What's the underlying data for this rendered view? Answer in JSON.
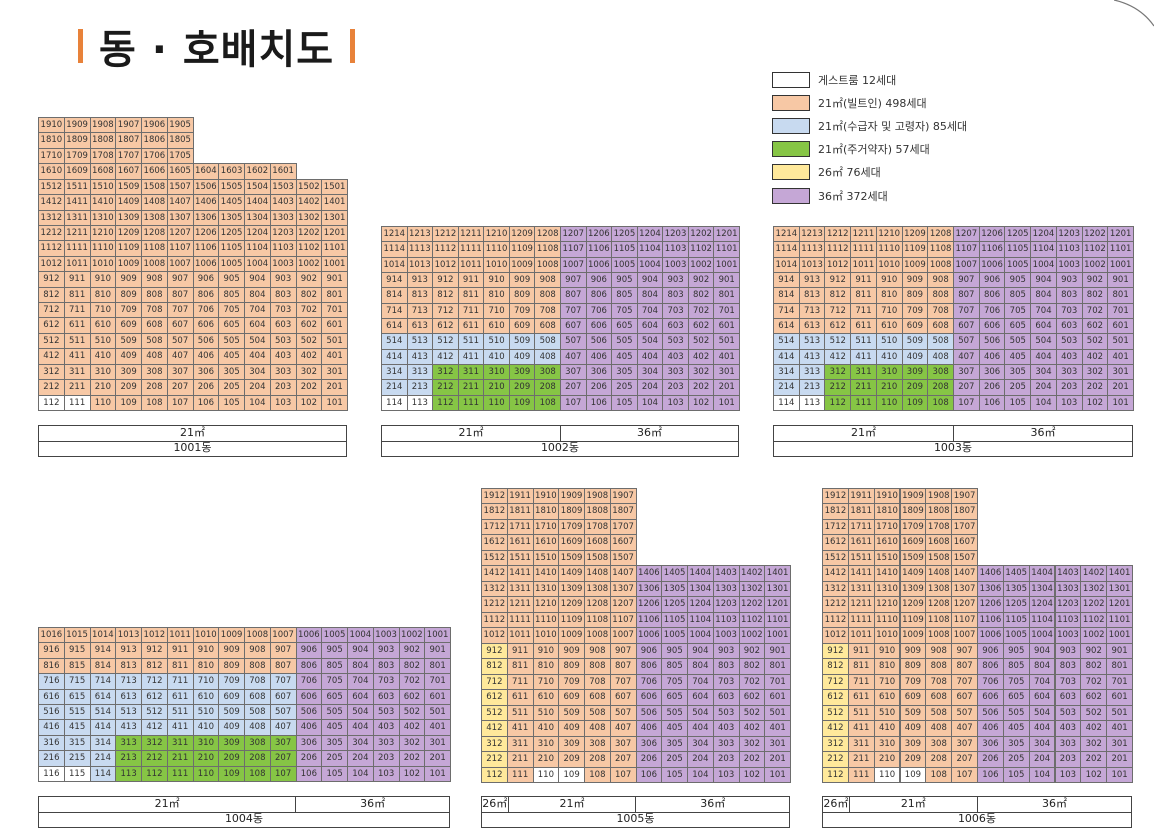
{
  "title": "동 · 호배치도",
  "legend": [
    {
      "label": "게스트룸 12세대",
      "color": "#ffffff"
    },
    {
      "label": "21㎡(빌트인) 498세대",
      "color": "#f7c8a5"
    },
    {
      "label": "21㎡(수급자 및 고령자) 85세대",
      "color": "#c8daf0"
    },
    {
      "label": "21㎡(주거약자) 57세대",
      "color": "#86c545"
    },
    {
      "label": "26㎡ 76세대",
      "color": "#ffe99b"
    },
    {
      "label": "36㎡ 372세대",
      "color": "#c5a7d6"
    }
  ],
  "type_key": {
    "G": "게스트룸",
    "B": "21㎡(빌트인)",
    "S": "21㎡(수급자 및 고령자)",
    "D": "21㎡(주거약자)",
    "T": "26㎡",
    "P": "36㎡"
  },
  "buildings": [
    {
      "name": "1001동",
      "floors": [
        {
          "floor": 19,
          "first_unit": 10,
          "last_unit": 5,
          "types": "BBBBBB"
        },
        {
          "floor": 18,
          "first_unit": 10,
          "last_unit": 5,
          "types": "BBBBBB"
        },
        {
          "floor": 17,
          "first_unit": 10,
          "last_unit": 5,
          "types": "BBBBBB"
        },
        {
          "floor": 16,
          "first_unit": 10,
          "last_unit": 1,
          "types": "BBBBBBBBBB"
        },
        {
          "floor": 15,
          "first_unit": 12,
          "last_unit": 1,
          "types": "BBBBBBBBBBBB"
        },
        {
          "floor": 14,
          "first_unit": 12,
          "last_unit": 1,
          "types": "BBBBBBBBBBBB"
        },
        {
          "floor": 13,
          "first_unit": 12,
          "last_unit": 1,
          "types": "BBBBBBBBBBBB"
        },
        {
          "floor": 12,
          "first_unit": 12,
          "last_unit": 1,
          "types": "BBBBBBBBBBBB"
        },
        {
          "floor": 11,
          "first_unit": 12,
          "last_unit": 1,
          "types": "BBBBBBBBBBBB"
        },
        {
          "floor": 10,
          "first_unit": 12,
          "last_unit": 1,
          "types": "BBBBBBBBBBBB"
        },
        {
          "floor": 9,
          "first_unit": 12,
          "last_unit": 1,
          "types": "BBBBBBBBBBBB"
        },
        {
          "floor": 8,
          "first_unit": 12,
          "last_unit": 1,
          "types": "BBBBBBBBBBBB"
        },
        {
          "floor": 7,
          "first_unit": 12,
          "last_unit": 1,
          "types": "BBBBBBBBBBBB"
        },
        {
          "floor": 6,
          "first_unit": 12,
          "last_unit": 1,
          "types": "BBBBBBBBBBBB"
        },
        {
          "floor": 5,
          "first_unit": 12,
          "last_unit": 1,
          "types": "BBBBBBBBBBBB"
        },
        {
          "floor": 4,
          "first_unit": 12,
          "last_unit": 1,
          "types": "BBBBBBBBBBBB"
        },
        {
          "floor": 3,
          "first_unit": 12,
          "last_unit": 1,
          "types": "BBBBBBBBBBBB"
        },
        {
          "floor": 2,
          "first_unit": 12,
          "last_unit": 1,
          "types": "BBBBBBBBBBBB"
        },
        {
          "floor": 1,
          "first_unit": 12,
          "last_unit": 1,
          "types": "GGBBBBBBBBBB"
        }
      ],
      "footer": {
        "types": [
          {
            "label": "21㎡",
            "units": 12
          }
        ]
      }
    },
    {
      "name": "1002동",
      "floors": [
        {
          "floor": 12,
          "first_unit": 14,
          "last_unit": 1,
          "types": "BBBBBBBPPPPPPP"
        },
        {
          "floor": 11,
          "first_unit": 14,
          "last_unit": 1,
          "types": "BBBBBBBPPPPPPP"
        },
        {
          "floor": 10,
          "first_unit": 14,
          "last_unit": 1,
          "types": "BBBBBBBPPPPPPP"
        },
        {
          "floor": 9,
          "first_unit": 14,
          "last_unit": 1,
          "types": "BBBBBBBPPPPPPP"
        },
        {
          "floor": 8,
          "first_unit": 14,
          "last_unit": 1,
          "types": "BBBBBBBPPPPPPP"
        },
        {
          "floor": 7,
          "first_unit": 14,
          "last_unit": 1,
          "types": "BBBBBBBPPPPPPP"
        },
        {
          "floor": 6,
          "first_unit": 14,
          "last_unit": 1,
          "types": "BBBBBBBPPPPPPP"
        },
        {
          "floor": 5,
          "first_unit": 14,
          "last_unit": 1,
          "types": "SSSSSSSPPPPPPP"
        },
        {
          "floor": 4,
          "first_unit": 14,
          "last_unit": 1,
          "types": "SSSSSSSPPPPPPP"
        },
        {
          "floor": 3,
          "first_unit": 14,
          "last_unit": 1,
          "types": "SSDDDDDPPPPPPP"
        },
        {
          "floor": 2,
          "first_unit": 14,
          "last_unit": 1,
          "types": "SSDDDDDPPPPPPP"
        },
        {
          "floor": 1,
          "first_unit": 14,
          "last_unit": 1,
          "types": "GGDDDDDPPPPPPP"
        }
      ],
      "footer": {
        "types": [
          {
            "label": "21㎡",
            "units": 7
          },
          {
            "label": "36㎡",
            "units": 7
          }
        ]
      }
    },
    {
      "name": "1003동",
      "floors": [
        {
          "floor": 12,
          "first_unit": 14,
          "last_unit": 1,
          "types": "BBBBBBBPPPPPPP"
        },
        {
          "floor": 11,
          "first_unit": 14,
          "last_unit": 1,
          "types": "BBBBBBBPPPPPPP"
        },
        {
          "floor": 10,
          "first_unit": 14,
          "last_unit": 1,
          "types": "BBBBBBBPPPPPPP"
        },
        {
          "floor": 9,
          "first_unit": 14,
          "last_unit": 1,
          "types": "BBBBBBBPPPPPPP"
        },
        {
          "floor": 8,
          "first_unit": 14,
          "last_unit": 1,
          "types": "BBBBBBBPPPPPPP"
        },
        {
          "floor": 7,
          "first_unit": 14,
          "last_unit": 1,
          "types": "BBBBBBBPPPPPPP"
        },
        {
          "floor": 6,
          "first_unit": 14,
          "last_unit": 1,
          "types": "BBBBBBBPPPPPPP"
        },
        {
          "floor": 5,
          "first_unit": 14,
          "last_unit": 1,
          "types": "SSSSSSSPPPPPPP"
        },
        {
          "floor": 4,
          "first_unit": 14,
          "last_unit": 1,
          "types": "SSSSSSSPPPPPPP"
        },
        {
          "floor": 3,
          "first_unit": 14,
          "last_unit": 1,
          "types": "SSDDDDDPPPPPPP"
        },
        {
          "floor": 2,
          "first_unit": 14,
          "last_unit": 1,
          "types": "SSDDDDDPPPPPPP"
        },
        {
          "floor": 1,
          "first_unit": 14,
          "last_unit": 1,
          "types": "GGDDDDDPPPPPPP"
        }
      ],
      "footer": {
        "types": [
          {
            "label": "21㎡",
            "units": 7
          },
          {
            "label": "36㎡",
            "units": 7
          }
        ]
      }
    },
    {
      "name": "1004동",
      "floors": [
        {
          "floor": 10,
          "first_unit": 16,
          "last_unit": 1,
          "types": "BBBBBBBBBBPPPPPP"
        },
        {
          "floor": 9,
          "first_unit": 16,
          "last_unit": 1,
          "types": "BBBBBBBBBBPPPPPP"
        },
        {
          "floor": 8,
          "first_unit": 16,
          "last_unit": 1,
          "types": "BBBBBBBBBBPPPPPP"
        },
        {
          "floor": 7,
          "first_unit": 16,
          "last_unit": 1,
          "types": "SSSSSSSSSSPPPPPP"
        },
        {
          "floor": 6,
          "first_unit": 16,
          "last_unit": 1,
          "types": "SSSSSSSSSSPPPPPP"
        },
        {
          "floor": 5,
          "first_unit": 16,
          "last_unit": 1,
          "types": "SSSSSSSSSSPPPPPP"
        },
        {
          "floor": 4,
          "first_unit": 16,
          "last_unit": 1,
          "types": "SSSSSSSSSSPPPPPP"
        },
        {
          "floor": 3,
          "first_unit": 16,
          "last_unit": 1,
          "types": "SSSDDDDDDDPPPPPP"
        },
        {
          "floor": 2,
          "first_unit": 16,
          "last_unit": 1,
          "types": "SSSDDDDDDDPPPPPP"
        },
        {
          "floor": 1,
          "first_unit": 16,
          "last_unit": 1,
          "types": "GGSDDDDDDDPPPPPP"
        }
      ],
      "footer": {
        "types": [
          {
            "label": "21㎡",
            "units": 10
          },
          {
            "label": "36㎡",
            "units": 6
          }
        ]
      }
    },
    {
      "name": "1005동",
      "floors": [
        {
          "floor": 19,
          "first_unit": 12,
          "last_unit": 7,
          "types": "BBBBBB"
        },
        {
          "floor": 18,
          "first_unit": 12,
          "last_unit": 7,
          "types": "BBBBBB"
        },
        {
          "floor": 17,
          "first_unit": 12,
          "last_unit": 7,
          "types": "BBBBBB"
        },
        {
          "floor": 16,
          "first_unit": 12,
          "last_unit": 7,
          "types": "BBBBBB"
        },
        {
          "floor": 15,
          "first_unit": 12,
          "last_unit": 7,
          "types": "BBBBBB"
        },
        {
          "floor": 14,
          "first_unit": 12,
          "last_unit": 1,
          "types": "BBBBBBPPPPPP"
        },
        {
          "floor": 13,
          "first_unit": 12,
          "last_unit": 1,
          "types": "BBBBBBPPPPPP"
        },
        {
          "floor": 12,
          "first_unit": 12,
          "last_unit": 1,
          "types": "BBBBBBPPPPPP"
        },
        {
          "floor": 11,
          "first_unit": 12,
          "last_unit": 1,
          "types": "BBBBBBPPPPPP"
        },
        {
          "floor": 10,
          "first_unit": 12,
          "last_unit": 1,
          "types": "BBBBBBPPPPPP"
        },
        {
          "floor": 9,
          "first_unit": 12,
          "last_unit": 1,
          "types": "TBBBBBPPPPPP"
        },
        {
          "floor": 8,
          "first_unit": 12,
          "last_unit": 1,
          "types": "TBBBBBPPPPPP"
        },
        {
          "floor": 7,
          "first_unit": 12,
          "last_unit": 1,
          "types": "TBBBBBPPPPPP"
        },
        {
          "floor": 6,
          "first_unit": 12,
          "last_unit": 1,
          "types": "TBBBBBPPPPPP"
        },
        {
          "floor": 5,
          "first_unit": 12,
          "last_unit": 1,
          "types": "TBBBBBPPPPPP"
        },
        {
          "floor": 4,
          "first_unit": 12,
          "last_unit": 1,
          "types": "TBBBBBPPPPPP"
        },
        {
          "floor": 3,
          "first_unit": 12,
          "last_unit": 1,
          "types": "TBBBBBPPPPPP"
        },
        {
          "floor": 2,
          "first_unit": 12,
          "last_unit": 1,
          "types": "TBBBBBPPPPPP"
        },
        {
          "floor": 1,
          "first_unit": 12,
          "last_unit": 1,
          "types": "TBGGBBPPPPPP"
        }
      ],
      "footer": {
        "types": [
          {
            "label": "26㎡",
            "units": 1
          },
          {
            "label": "21㎡",
            "units": 5
          },
          {
            "label": "36㎡",
            "units": 6
          }
        ]
      }
    },
    {
      "name": "1006동",
      "floors": [
        {
          "floor": 19,
          "first_unit": 12,
          "last_unit": 7,
          "types": "BBBBBB"
        },
        {
          "floor": 18,
          "first_unit": 12,
          "last_unit": 7,
          "types": "BBBBBB"
        },
        {
          "floor": 17,
          "first_unit": 12,
          "last_unit": 7,
          "types": "BBBBBB"
        },
        {
          "floor": 16,
          "first_unit": 12,
          "last_unit": 7,
          "types": "BBBBBB"
        },
        {
          "floor": 15,
          "first_unit": 12,
          "last_unit": 7,
          "types": "BBBBBB"
        },
        {
          "floor": 14,
          "first_unit": 12,
          "last_unit": 1,
          "types": "BBBBBBPPPPPP"
        },
        {
          "floor": 13,
          "first_unit": 12,
          "last_unit": 1,
          "types": "BBBBBBPPPPPP"
        },
        {
          "floor": 12,
          "first_unit": 12,
          "last_unit": 1,
          "types": "BBBBBBPPPPPP"
        },
        {
          "floor": 11,
          "first_unit": 12,
          "last_unit": 1,
          "types": "BBBBBBPPPPPP"
        },
        {
          "floor": 10,
          "first_unit": 12,
          "last_unit": 1,
          "types": "BBBBBBPPPPPP"
        },
        {
          "floor": 9,
          "first_unit": 12,
          "last_unit": 1,
          "types": "TBBBBBPPPPPP"
        },
        {
          "floor": 8,
          "first_unit": 12,
          "last_unit": 1,
          "types": "TBBBBBPPPPPP"
        },
        {
          "floor": 7,
          "first_unit": 12,
          "last_unit": 1,
          "types": "TBBBBBPPPPPP"
        },
        {
          "floor": 6,
          "first_unit": 12,
          "last_unit": 1,
          "types": "TBBBBBPPPPPP"
        },
        {
          "floor": 5,
          "first_unit": 12,
          "last_unit": 1,
          "types": "TBBBBBPPPPPP"
        },
        {
          "floor": 4,
          "first_unit": 12,
          "last_unit": 1,
          "types": "TBBBBBPPPPPP"
        },
        {
          "floor": 3,
          "first_unit": 12,
          "last_unit": 1,
          "types": "TBBBBBPPPPPP"
        },
        {
          "floor": 2,
          "first_unit": 12,
          "last_unit": 1,
          "types": "TBBBBBPPPPPP"
        },
        {
          "floor": 1,
          "first_unit": 12,
          "last_unit": 1,
          "types": "TBGGBBPPPPPP"
        }
      ],
      "footer": {
        "types": [
          {
            "label": "26㎡",
            "units": 1
          },
          {
            "label": "21㎡",
            "units": 5
          },
          {
            "label": "36㎡",
            "units": 6
          }
        ]
      }
    }
  ]
}
